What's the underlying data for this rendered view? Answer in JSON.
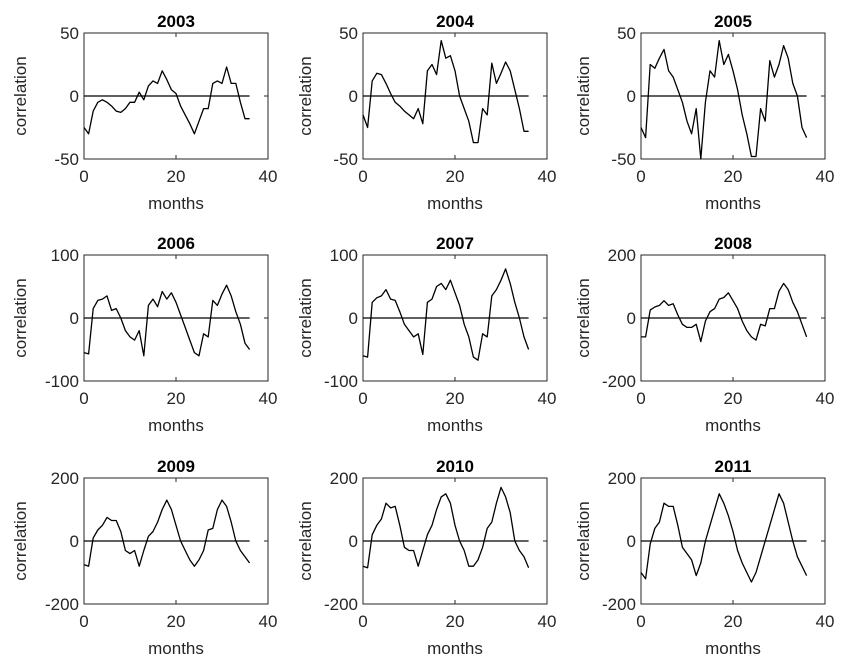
{
  "chart_data": [
    {
      "type": "line",
      "title": "2003",
      "xlabel": "months",
      "ylabel": "correlation",
      "xlim": [
        0,
        40
      ],
      "ylim": [
        -50,
        50
      ],
      "xticks": [
        0,
        20,
        40
      ],
      "yticks": [
        -50,
        0,
        50
      ],
      "zero_line": true,
      "x": [
        0,
        1,
        2,
        3,
        4,
        5,
        6,
        7,
        8,
        9,
        10,
        11,
        12,
        13,
        14,
        15,
        16,
        17,
        18,
        19,
        20,
        21,
        22,
        23,
        24,
        25,
        26,
        27,
        28,
        29,
        30,
        31,
        32,
        33,
        34,
        35,
        36
      ],
      "series": [
        {
          "values": [
            -25,
            -30,
            -12,
            -5,
            -3,
            -5,
            -8,
            -12,
            -13,
            -10,
            -5,
            -5,
            3,
            -3,
            8,
            12,
            10,
            20,
            13,
            5,
            2,
            -8,
            -15,
            -22,
            -30,
            -20,
            -10,
            -10,
            10,
            12,
            10,
            23,
            10,
            10,
            -5,
            -18,
            -18
          ]
        }
      ]
    },
    {
      "type": "line",
      "title": "2004",
      "xlabel": "months",
      "ylabel": "correlation",
      "xlim": [
        0,
        40
      ],
      "ylim": [
        -50,
        50
      ],
      "xticks": [
        0,
        20,
        40
      ],
      "yticks": [
        -50,
        0,
        50
      ],
      "zero_line": true,
      "x": [
        0,
        1,
        2,
        3,
        4,
        5,
        6,
        7,
        8,
        9,
        10,
        11,
        12,
        13,
        14,
        15,
        16,
        17,
        18,
        19,
        20,
        21,
        22,
        23,
        24,
        25,
        26,
        27,
        28,
        29,
        30,
        31,
        32,
        33,
        34,
        35,
        36
      ],
      "series": [
        {
          "values": [
            -15,
            -25,
            12,
            18,
            17,
            10,
            2,
            -5,
            -8,
            -12,
            -15,
            -18,
            -10,
            -22,
            20,
            25,
            17,
            44,
            30,
            32,
            20,
            0,
            -10,
            -20,
            -37,
            -37,
            -10,
            -15,
            26,
            10,
            18,
            27,
            20,
            5,
            -10,
            -28,
            -28
          ]
        }
      ]
    },
    {
      "type": "line",
      "title": "2005",
      "xlabel": "months",
      "ylabel": "correlation",
      "xlim": [
        0,
        40
      ],
      "ylim": [
        -50,
        50
      ],
      "xticks": [
        0,
        20,
        40
      ],
      "yticks": [
        -50,
        0,
        50
      ],
      "zero_line": true,
      "x": [
        0,
        1,
        2,
        3,
        4,
        5,
        6,
        7,
        8,
        9,
        10,
        11,
        12,
        13,
        14,
        15,
        16,
        17,
        18,
        19,
        20,
        21,
        22,
        23,
        24,
        25,
        26,
        27,
        28,
        29,
        30,
        31,
        32,
        33,
        34,
        35,
        36
      ],
      "series": [
        {
          "values": [
            -25,
            -33,
            25,
            22,
            30,
            37,
            20,
            15,
            5,
            -5,
            -20,
            -30,
            -10,
            -50,
            -5,
            20,
            15,
            44,
            25,
            33,
            20,
            5,
            -15,
            -30,
            -48,
            -48,
            -10,
            -20,
            28,
            15,
            25,
            40,
            30,
            10,
            0,
            -25,
            -33
          ]
        }
      ]
    },
    {
      "type": "line",
      "title": "2006",
      "xlabel": "months",
      "ylabel": "correlation",
      "xlim": [
        0,
        40
      ],
      "ylim": [
        -100,
        100
      ],
      "xticks": [
        0,
        20,
        40
      ],
      "yticks": [
        -100,
        0,
        100
      ],
      "zero_line": true,
      "x": [
        0,
        1,
        2,
        3,
        4,
        5,
        6,
        7,
        8,
        9,
        10,
        11,
        12,
        13,
        14,
        15,
        16,
        17,
        18,
        19,
        20,
        21,
        22,
        23,
        24,
        25,
        26,
        27,
        28,
        29,
        30,
        31,
        32,
        33,
        34,
        35,
        36
      ],
      "series": [
        {
          "values": [
            -55,
            -57,
            15,
            28,
            30,
            35,
            12,
            15,
            0,
            -20,
            -30,
            -35,
            -20,
            -60,
            20,
            30,
            18,
            42,
            30,
            40,
            25,
            5,
            -15,
            -35,
            -55,
            -60,
            -25,
            -30,
            28,
            20,
            38,
            52,
            35,
            10,
            -10,
            -40,
            -50
          ]
        }
      ]
    },
    {
      "type": "line",
      "title": "2007",
      "xlabel": "months",
      "ylabel": "correlation",
      "xlim": [
        0,
        40
      ],
      "ylim": [
        -100,
        100
      ],
      "xticks": [
        0,
        20,
        40
      ],
      "yticks": [
        -100,
        0,
        100
      ],
      "zero_line": true,
      "x": [
        0,
        1,
        2,
        3,
        4,
        5,
        6,
        7,
        8,
        9,
        10,
        11,
        12,
        13,
        14,
        15,
        16,
        17,
        18,
        19,
        20,
        21,
        22,
        23,
        24,
        25,
        26,
        27,
        28,
        29,
        30,
        31,
        32,
        33,
        34,
        35,
        36
      ],
      "series": [
        {
          "values": [
            -60,
            -62,
            25,
            32,
            35,
            45,
            30,
            28,
            10,
            -10,
            -20,
            -30,
            -25,
            -58,
            25,
            30,
            50,
            55,
            45,
            60,
            40,
            20,
            -10,
            -30,
            -62,
            -67,
            -25,
            -30,
            35,
            45,
            60,
            78,
            55,
            25,
            0,
            -30,
            -50
          ]
        }
      ]
    },
    {
      "type": "line",
      "title": "2008",
      "xlabel": "months",
      "ylabel": "correlation",
      "xlim": [
        0,
        40
      ],
      "ylim": [
        -200,
        200
      ],
      "xticks": [
        0,
        20,
        40
      ],
      "yticks": [
        -200,
        0,
        200
      ],
      "zero_line": true,
      "x": [
        0,
        1,
        2,
        3,
        4,
        5,
        6,
        7,
        8,
        9,
        10,
        11,
        12,
        13,
        14,
        15,
        16,
        17,
        18,
        19,
        20,
        21,
        22,
        23,
        24,
        25,
        26,
        27,
        28,
        29,
        30,
        31,
        32,
        33,
        34,
        35,
        36
      ],
      "series": [
        {
          "values": [
            -60,
            -60,
            25,
            35,
            40,
            55,
            40,
            45,
            10,
            -20,
            -30,
            -30,
            -20,
            -75,
            -10,
            20,
            30,
            60,
            65,
            80,
            55,
            30,
            -10,
            -40,
            -60,
            -70,
            -20,
            -25,
            30,
            30,
            85,
            110,
            90,
            50,
            20,
            -20,
            -60
          ]
        }
      ]
    },
    {
      "type": "line",
      "title": "2009",
      "xlabel": "months",
      "ylabel": "correlation",
      "xlim": [
        0,
        40
      ],
      "ylim": [
        -200,
        200
      ],
      "xticks": [
        0,
        20,
        40
      ],
      "yticks": [
        -200,
        0,
        200
      ],
      "zero_line": true,
      "x": [
        0,
        1,
        2,
        3,
        4,
        5,
        6,
        7,
        8,
        9,
        10,
        11,
        12,
        13,
        14,
        15,
        16,
        17,
        18,
        19,
        20,
        21,
        22,
        23,
        24,
        25,
        26,
        27,
        28,
        29,
        30,
        31,
        32,
        33,
        34,
        35,
        36
      ],
      "series": [
        {
          "values": [
            -75,
            -80,
            10,
            35,
            50,
            75,
            65,
            65,
            30,
            -30,
            -40,
            -30,
            -80,
            -30,
            15,
            30,
            60,
            100,
            130,
            100,
            50,
            0,
            -30,
            -60,
            -80,
            -60,
            -30,
            35,
            40,
            100,
            130,
            110,
            60,
            0,
            -30,
            -50,
            -70
          ]
        }
      ]
    },
    {
      "type": "line",
      "title": "2010",
      "xlabel": "months",
      "ylabel": "correlation",
      "xlim": [
        0,
        40
      ],
      "ylim": [
        -200,
        200
      ],
      "xticks": [
        0,
        20,
        40
      ],
      "yticks": [
        -200,
        0,
        200
      ],
      "zero_line": true,
      "x": [
        0,
        1,
        2,
        3,
        4,
        5,
        6,
        7,
        8,
        9,
        10,
        11,
        12,
        13,
        14,
        15,
        16,
        17,
        18,
        19,
        20,
        21,
        22,
        23,
        24,
        25,
        26,
        27,
        28,
        29,
        30,
        31,
        32,
        33,
        34,
        35,
        36
      ],
      "series": [
        {
          "values": [
            -80,
            -85,
            20,
            50,
            70,
            120,
            105,
            110,
            50,
            -20,
            -30,
            -30,
            -80,
            -30,
            20,
            50,
            100,
            140,
            150,
            120,
            50,
            0,
            -30,
            -80,
            -80,
            -60,
            -20,
            40,
            60,
            120,
            170,
            140,
            90,
            0,
            -30,
            -50,
            -85
          ]
        }
      ]
    },
    {
      "type": "line",
      "title": "2011",
      "xlabel": "months",
      "ylabel": "correlation",
      "xlim": [
        0,
        40
      ],
      "ylim": [
        -200,
        200
      ],
      "xticks": [
        0,
        20,
        40
      ],
      "yticks": [
        -200,
        0,
        200
      ],
      "zero_line": true,
      "x": [
        0,
        1,
        2,
        3,
        4,
        5,
        6,
        7,
        8,
        9,
        10,
        11,
        12,
        13,
        14,
        15,
        16,
        17,
        18,
        19,
        20,
        21,
        22,
        23,
        24,
        25,
        26,
        27,
        28,
        29,
        30,
        31,
        32,
        33,
        34,
        35,
        36
      ],
      "series": [
        {
          "values": [
            -100,
            -120,
            -10,
            40,
            60,
            120,
            110,
            110,
            50,
            -20,
            -40,
            -60,
            -110,
            -70,
            0,
            50,
            100,
            150,
            120,
            80,
            30,
            -30,
            -70,
            -100,
            -130,
            -100,
            -50,
            0,
            50,
            100,
            150,
            120,
            60,
            0,
            -50,
            -80,
            -110
          ]
        }
      ]
    }
  ]
}
